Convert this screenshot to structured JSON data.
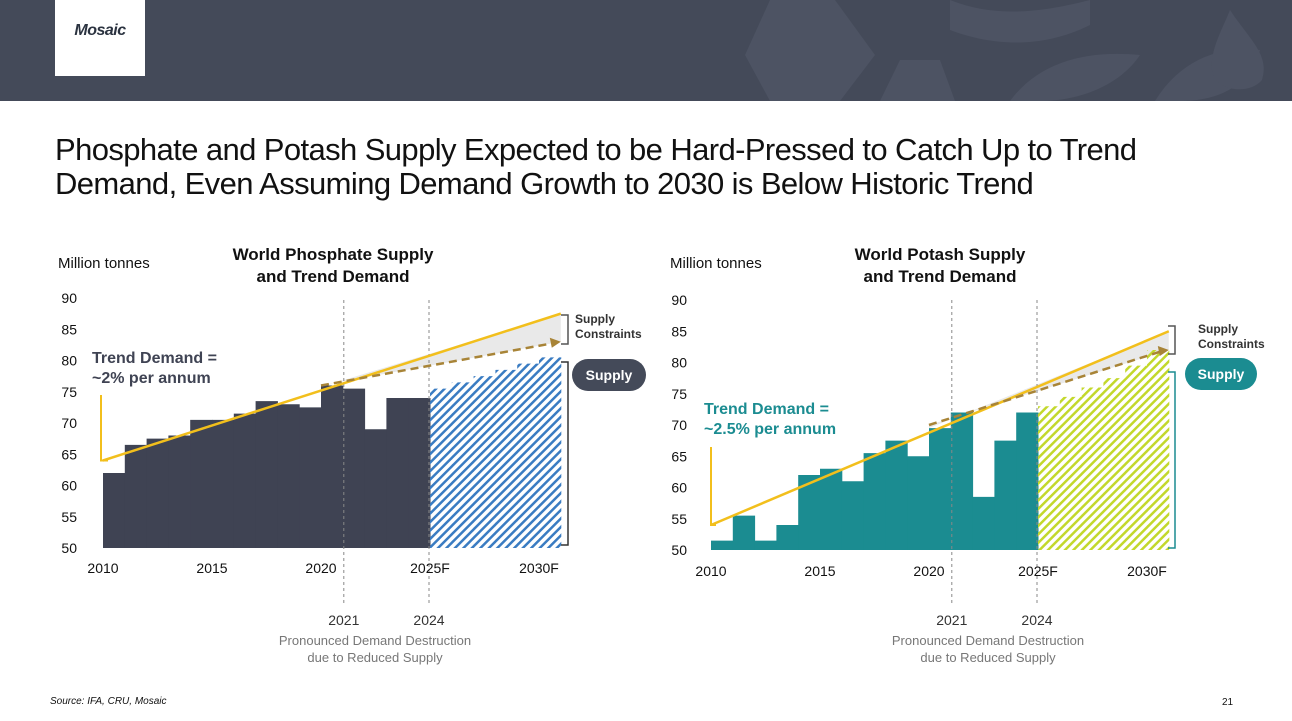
{
  "header": {
    "logo": "Mosaic"
  },
  "title": "Phosphate and Potash Supply Expected to be Hard-Pressed to Catch Up to Trend Demand, Even Assuming Demand Growth to 2030 is Below Historic Trend",
  "colors": {
    "header_bg": "#444a59",
    "phosphate_bar": "#3f4353",
    "potash_bar": "#1b8c91",
    "phosphate_hatch": "#3a7cc2",
    "potash_hatch": "#c3d82c",
    "trend": "#f2bf1c",
    "dashed": "#a88437"
  },
  "chart_data": [
    {
      "type": "bar",
      "title_line1": "World Phosphate Supply",
      "title_line2": "and Trend Demand",
      "unit_label": "Million tonnes",
      "ylim": [
        50,
        90
      ],
      "yticks": [
        "50",
        "55",
        "60",
        "65",
        "70",
        "75",
        "80",
        "85",
        "90"
      ],
      "xticks": [
        {
          "year": 2010,
          "label": "2010"
        },
        {
          "year": 2015,
          "label": "2015"
        },
        {
          "year": 2020,
          "label": "2020"
        },
        {
          "year": 2025,
          "label": "2025F"
        },
        {
          "year": 2030,
          "label": "2030F"
        }
      ],
      "years": [
        2010,
        2011,
        2012,
        2013,
        2014,
        2015,
        2016,
        2017,
        2018,
        2019,
        2020,
        2021,
        2022,
        2023,
        2024
      ],
      "values": [
        62,
        66.5,
        67.5,
        68,
        70.5,
        70.5,
        71.5,
        73.5,
        73,
        72.5,
        76,
        75.5,
        69,
        74,
        74
      ],
      "forecast_years": [
        2025,
        2026,
        2027,
        2028,
        2029,
        2030
      ],
      "forecast_values": [
        75.5,
        76.5,
        77.5,
        78.5,
        79.5,
        80.5
      ],
      "trend_line": {
        "start": [
          2010,
          64
        ],
        "end": [
          2030,
          87.5
        ]
      },
      "dashed_line": {
        "start": [
          2020,
          76
        ],
        "end": [
          2030,
          83
        ]
      },
      "trend_label_line1": "Trend Demand =",
      "trend_label_line2": "~2% per annum",
      "supply_constraints_line1": "Supply",
      "supply_constraints_line2": "Constraints",
      "supply_label": "Supply",
      "markers": [
        {
          "year": 2021,
          "label": "2021"
        },
        {
          "year": 2024,
          "label": "2024"
        }
      ],
      "note_line1": "Pronounced Demand Destruction",
      "note_line2": "due to Reduced Supply"
    },
    {
      "type": "bar",
      "title_line1": "World Potash Supply",
      "title_line2": "and Trend Demand",
      "unit_label": "Million tonnes",
      "ylim": [
        50,
        90
      ],
      "yticks": [
        "50",
        "55",
        "60",
        "65",
        "70",
        "75",
        "80",
        "85",
        "90"
      ],
      "xticks": [
        {
          "year": 2010,
          "label": "2010"
        },
        {
          "year": 2015,
          "label": "2015"
        },
        {
          "year": 2020,
          "label": "2020"
        },
        {
          "year": 2025,
          "label": "2025F"
        },
        {
          "year": 2030,
          "label": "2030F"
        }
      ],
      "years": [
        2010,
        2011,
        2012,
        2013,
        2014,
        2015,
        2016,
        2017,
        2018,
        2019,
        2020,
        2021,
        2022,
        2023,
        2024
      ],
      "values": [
        51.5,
        55.5,
        51.5,
        54,
        62,
        63,
        61,
        65.5,
        67.5,
        65,
        69.5,
        72,
        58.5,
        67.5,
        72
      ],
      "forecast_years": [
        2025,
        2026,
        2027,
        2028,
        2029,
        2030
      ],
      "forecast_values": [
        73,
        74.5,
        76,
        77.5,
        79.5,
        82
      ],
      "trend_line": {
        "start": [
          2010,
          54
        ],
        "end": [
          2030,
          85
        ]
      },
      "dashed_line": {
        "start": [
          2020,
          70
        ],
        "end": [
          2030,
          82
        ]
      },
      "trend_label_line1": "Trend Demand =",
      "trend_label_line2": "~2.5% per annum",
      "supply_constraints_line1": "Supply",
      "supply_constraints_line2": "Constraints",
      "supply_label": "Supply",
      "markers": [
        {
          "year": 2021,
          "label": "2021"
        },
        {
          "year": 2024,
          "label": "2024"
        }
      ],
      "note_line1": "Pronounced Demand Destruction",
      "note_line2": "due to Reduced Supply"
    }
  ],
  "footer": {
    "source": "Source: IFA, CRU, Mosaic",
    "page_number": "21"
  }
}
